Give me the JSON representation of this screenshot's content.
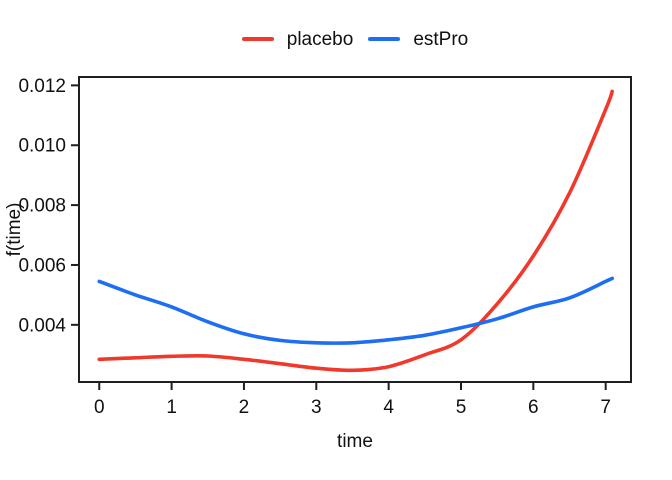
{
  "chart_data": {
    "type": "line",
    "title": "",
    "xlabel": "time",
    "ylabel": "f(time)",
    "xlim": [
      -0.28,
      7.35
    ],
    "ylim": [
      0.00209,
      0.01228
    ],
    "x_ticks": [
      0,
      1,
      2,
      3,
      4,
      5,
      6,
      7
    ],
    "y_ticks": [
      0.004,
      0.006,
      0.008,
      0.01,
      0.012
    ],
    "y_tick_labels": [
      "0.004",
      "0.006",
      "0.008",
      "0.010",
      "0.012"
    ],
    "grid": false,
    "legend_position": "top-center",
    "x": [
      0,
      0.5,
      1,
      1.5,
      2,
      2.5,
      3,
      3.5,
      4,
      4.5,
      5,
      5.5,
      6,
      6.5,
      7,
      7.09
    ],
    "series": [
      {
        "name": "placebo",
        "color": "#f0392c",
        "values": [
          0.00285,
          0.0029,
          0.00295,
          0.00296,
          0.00285,
          0.0027,
          0.00255,
          0.00248,
          0.0026,
          0.003,
          0.0035,
          0.0047,
          0.0063,
          0.0084,
          0.0112,
          0.0118
        ]
      },
      {
        "name": "estPro",
        "color": "#1d6ef2",
        "values": [
          0.00545,
          0.005,
          0.0046,
          0.0041,
          0.0037,
          0.00348,
          0.0034,
          0.0034,
          0.0035,
          0.00365,
          0.0039,
          0.0042,
          0.0046,
          0.0049,
          0.00545,
          0.00555
        ]
      }
    ],
    "axis_color": "#1f1f1f",
    "text_color": "#111111"
  }
}
